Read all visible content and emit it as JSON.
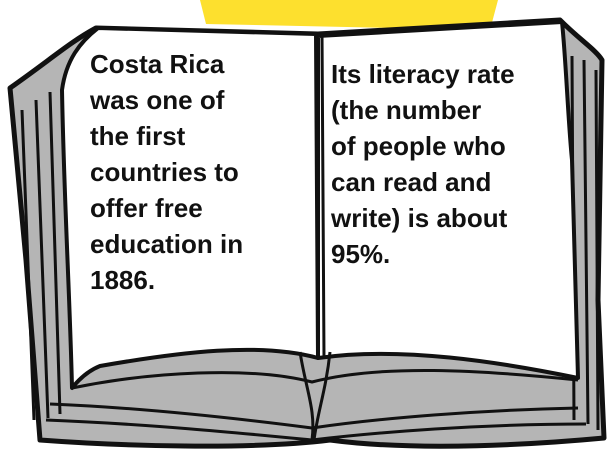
{
  "colors": {
    "sticky_note": "#fde02e",
    "book_cover": "#b5b5b5",
    "page": "#ffffff",
    "outline": "#111111"
  },
  "pages": {
    "left_text": "Costa Rica\nwas one of\nthe first\ncountries to\noffer free\neducation in\n1886.",
    "right_text": "Its literacy rate\n(the number\nof people who\ncan read and\nwrite) is about\n95%."
  }
}
